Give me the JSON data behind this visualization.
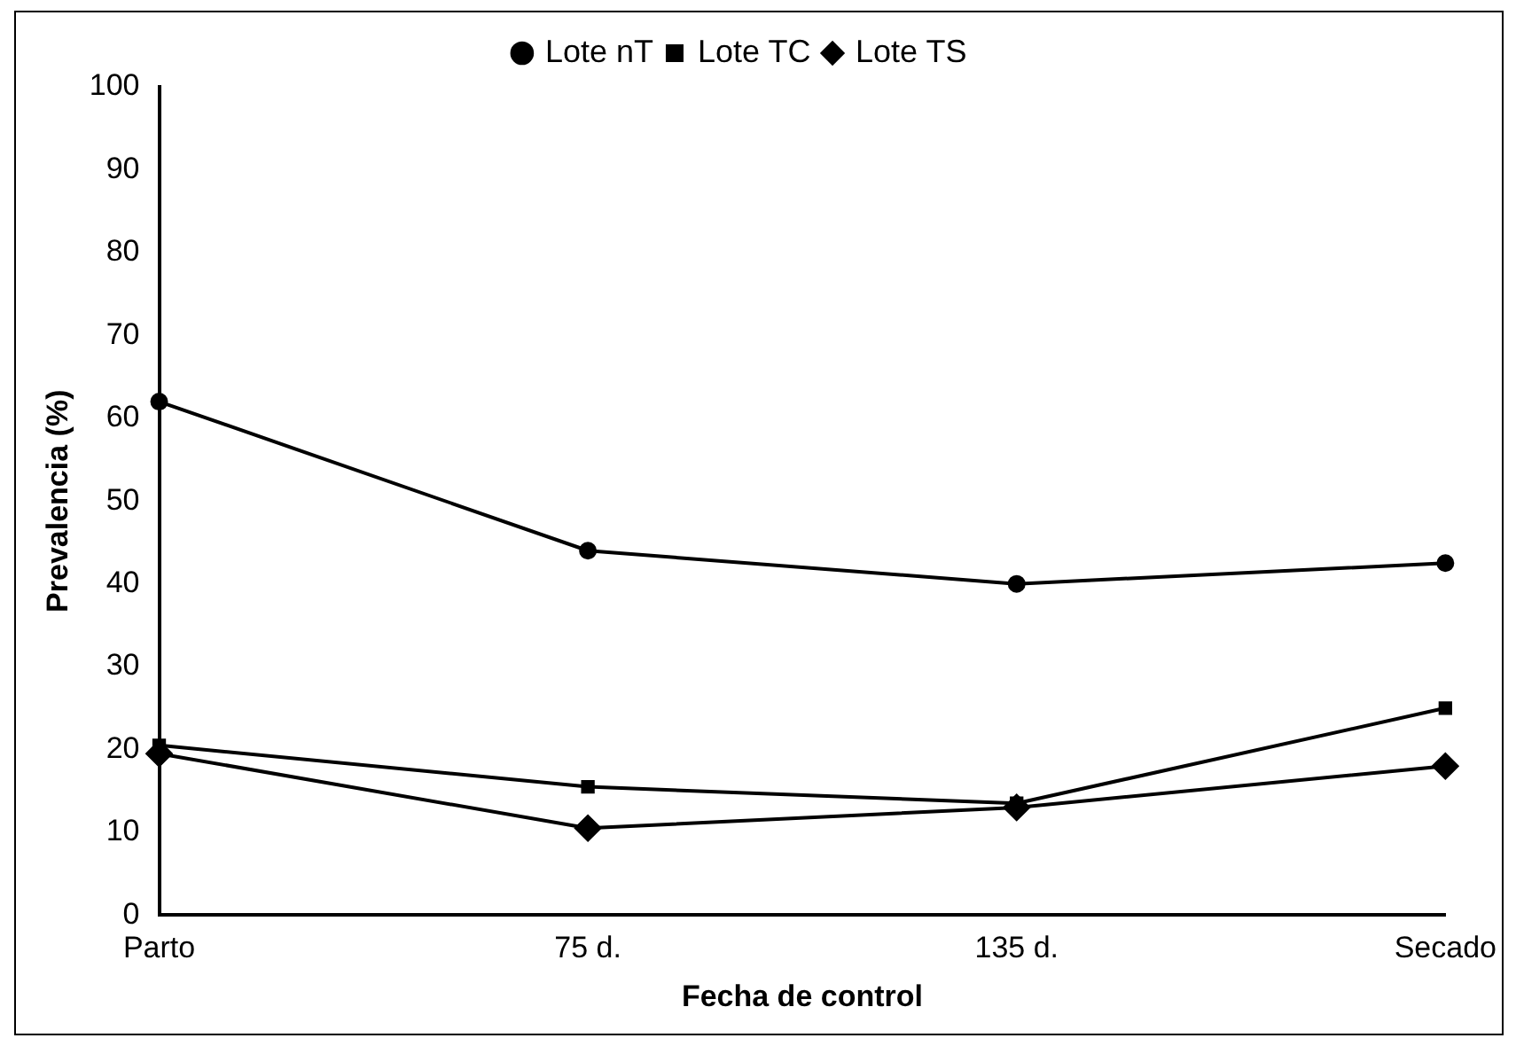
{
  "chart_data": {
    "type": "line",
    "xlabel": "Fecha de control",
    "ylabel": "Prevalencia (%)",
    "categories": [
      "Parto",
      "75 d.",
      "135 d.",
      "Secado"
    ],
    "series": [
      {
        "name": "Lote nT",
        "color": "#000000",
        "marker": "circle",
        "values": [
          62,
          44,
          40,
          42.5
        ]
      },
      {
        "name": "Lote TC",
        "color": "#000000",
        "marker": "square",
        "values": [
          20.5,
          15.5,
          13.5,
          25
        ]
      },
      {
        "name": "Lote TS",
        "color": "#000000",
        "marker": "diamond",
        "values": [
          19.5,
          10.5,
          13,
          18
        ]
      }
    ],
    "ylim": [
      0,
      100
    ],
    "yticks": [
      0,
      10,
      20,
      30,
      40,
      50,
      60,
      70,
      80,
      90,
      100
    ],
    "grid": false,
    "legend": "top",
    "line_style": "solid"
  }
}
